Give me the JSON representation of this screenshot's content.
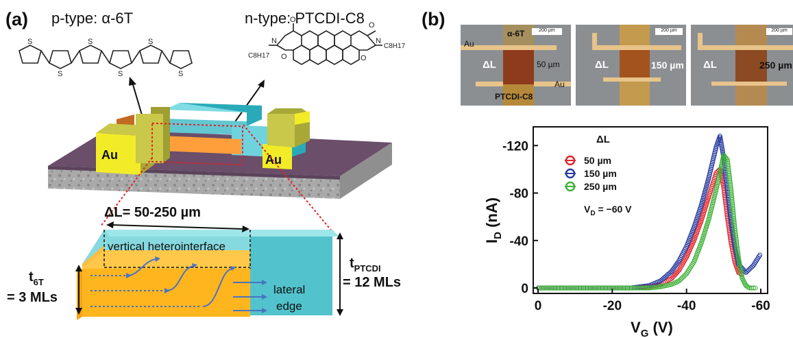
{
  "panel_a": {
    "label": "(a)",
    "ptype_label": "p-type: α-6T",
    "ntype_label": "n-type: PTCDI-C8",
    "ntype_substituent": "C8H17",
    "au_label": "Au",
    "delta_l": "ΔL= 50-250 µm",
    "heterointerface": "vertical heterointerface",
    "lateral_edge_line1": "lateral",
    "lateral_edge_line2": "edge",
    "t6t_symbol": "t",
    "t6t_sub": "6T",
    "t6t_value": "= 3 MLs",
    "tptcdi_symbol": "t",
    "tptcdi_sub": "PTCDI",
    "tptcdi_value": "= 12 MLs"
  },
  "panel_b": {
    "label": "(b)",
    "scale_bar": "200 µm",
    "micrographs": [
      {
        "au_top": "Au",
        "a6t": "α-6T",
        "dl": "ΔL",
        "dl_value": "50 µm",
        "ptcdi": "PTCDI-C8",
        "au_bottom": "Au"
      },
      {
        "dl": "ΔL",
        "dl_value": "150 µm"
      },
      {
        "dl": "ΔL",
        "dl_value": "250 µm"
      }
    ]
  },
  "chart_data": {
    "type": "scatter",
    "xlabel_main": "V",
    "xlabel_sub": "G",
    "xlabel_unit": " (V)",
    "ylabel_main": "I",
    "ylabel_sub": "D",
    "ylabel_unit": " (nA)",
    "xlim": [
      0,
      -60
    ],
    "ylim": [
      0,
      -130
    ],
    "xticks": [
      0,
      -20,
      -40,
      -60
    ],
    "yticks": [
      0,
      -40,
      -80,
      -120
    ],
    "xtick_labels": [
      "0",
      "-20",
      "-40",
      "-60"
    ],
    "ytick_labels": [
      "0",
      "-40",
      "-80",
      "-120"
    ],
    "legend_title": "ΔL",
    "annotation_main": "V",
    "annotation_sub": "D",
    "annotation_value": " = −60 V",
    "series": [
      {
        "name": "50 µm",
        "color": "#e0282e",
        "x": [
          0,
          -10,
          -20,
          -25,
          -30,
          -33,
          -36,
          -38,
          -40,
          -42,
          -44,
          -46,
          -47,
          -48,
          -49,
          -50,
          -51,
          -52,
          -53,
          -54,
          -55
        ],
        "y": [
          0,
          0,
          0,
          0,
          -1,
          -3,
          -8,
          -15,
          -26,
          -40,
          -57,
          -77,
          -87,
          -97,
          -100,
          -85,
          -60,
          -38,
          -22,
          -13,
          -11
        ]
      },
      {
        "name": "150 µm",
        "color": "#2a3ea0",
        "x": [
          0,
          -10,
          -20,
          -25,
          -30,
          -33,
          -36,
          -38,
          -40,
          -42,
          -44,
          -46,
          -47,
          -48,
          -49,
          -50,
          -51,
          -52,
          -53,
          -54,
          -56,
          -58,
          -60
        ],
        "y": [
          0,
          0,
          0,
          0,
          -2,
          -6,
          -14,
          -23,
          -35,
          -51,
          -70,
          -93,
          -106,
          -119,
          -128,
          -110,
          -82,
          -55,
          -34,
          -20,
          -13,
          -19,
          -29
        ]
      },
      {
        "name": "250 µm",
        "color": "#3fb23a",
        "x": [
          0,
          -10,
          -20,
          -25,
          -30,
          -33,
          -36,
          -38,
          -40,
          -42,
          -44,
          -46,
          -48,
          -49,
          -50,
          -51,
          -52,
          -53,
          -54,
          -55,
          -56,
          -57,
          -58,
          -59
        ],
        "y": [
          0,
          0,
          0,
          0,
          0,
          -1,
          -3,
          -6,
          -12,
          -22,
          -38,
          -58,
          -83,
          -97,
          -112,
          -108,
          -82,
          -50,
          -25,
          -8,
          -2,
          0,
          0,
          0
        ]
      }
    ]
  }
}
